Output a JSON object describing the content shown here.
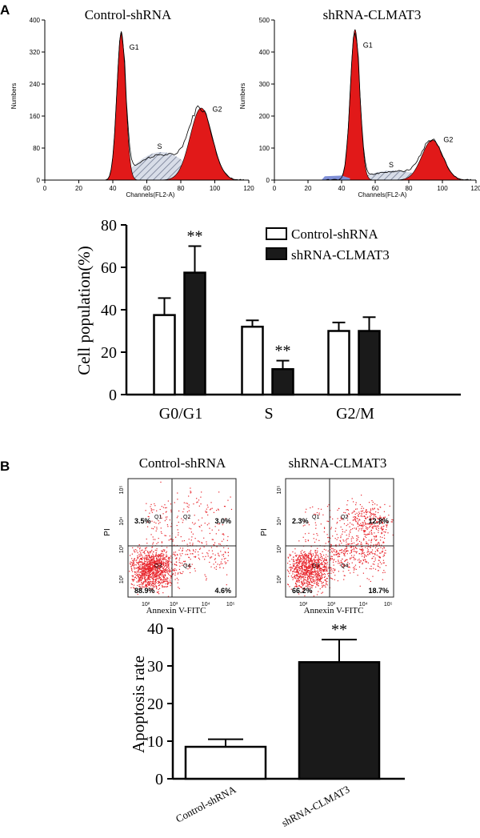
{
  "panels": {
    "a": "A",
    "b": "B"
  },
  "chart_data": [
    {
      "type": "histogram",
      "panel": "A",
      "title": "Control-shRNA",
      "xlabel": "Channels(FL2-A)",
      "ylabel": "Numbers",
      "xlim": [
        0,
        120
      ],
      "ylim": [
        0,
        400
      ],
      "xticks": [
        "0",
        "20",
        "40",
        "60",
        "80",
        "100",
        "120"
      ],
      "yticks": [
        "0",
        "80",
        "160",
        "240",
        "320",
        "400"
      ],
      "peaks": [
        {
          "label": "G1",
          "center": 45,
          "height": 370
        },
        {
          "label": "S",
          "center": 68,
          "height": 70
        },
        {
          "label": "G2",
          "center": 92,
          "height": 180
        }
      ]
    },
    {
      "type": "histogram",
      "panel": "A",
      "title": "shRNA-CLMAT3",
      "xlabel": "Channels(FL2-A)",
      "ylabel": "Numbers",
      "xlim": [
        0,
        120
      ],
      "ylim": [
        0,
        500
      ],
      "xticks": [
        "0",
        "20",
        "40",
        "60",
        "80",
        "100",
        "120"
      ],
      "yticks": [
        "0",
        "100",
        "200",
        "300",
        "400",
        "500"
      ],
      "peaks": [
        {
          "label": "G1",
          "center": 48,
          "height": 470
        },
        {
          "label": "S",
          "center": 70,
          "height": 30
        },
        {
          "label": "G2",
          "center": 94,
          "height": 125
        }
      ]
    },
    {
      "type": "bar",
      "panel": "A",
      "ylabel": "Cell population(%)",
      "ylim": [
        0,
        80
      ],
      "yticks": [
        "0",
        "20",
        "40",
        "60",
        "80"
      ],
      "categories": [
        "G0/G1",
        "S",
        "G2/M"
      ],
      "legend": [
        "Control-shRNA",
        "shRNA-CLMAT3"
      ],
      "series": [
        {
          "name": "Control-shRNA",
          "values": [
            37.5,
            32.0,
            30.0
          ],
          "errors": [
            8.0,
            3.0,
            4.0
          ]
        },
        {
          "name": "shRNA-CLMAT3",
          "values": [
            57.5,
            12.0,
            30.0
          ],
          "errors": [
            12.5,
            4.0,
            6.5
          ]
        }
      ],
      "significance": [
        "**",
        "**",
        ""
      ]
    },
    {
      "type": "scatter",
      "panel": "B",
      "title": "Control-shRNA",
      "xlabel": "Annexin V-FITC",
      "ylabel": "PI",
      "quadrants": {
        "q1": "Q1",
        "q2": "Q2",
        "q3": "Q3",
        "q4": "Q4"
      },
      "percents": {
        "q1": "3.5%",
        "q2": "3.0%",
        "q3": "88.9%",
        "q4": "4.6%"
      },
      "xticks": [
        "10²",
        "10³",
        "10⁴",
        "10⁵"
      ],
      "yticks": [
        "10²",
        "10³",
        "10⁴",
        "10⁵"
      ]
    },
    {
      "type": "scatter",
      "panel": "B",
      "title": "shRNA-CLMAT3",
      "xlabel": "Annexin V-FITC",
      "ylabel": "PI",
      "quadrants": {
        "q1": "Q1",
        "q2": "Q2",
        "q3": "Q3",
        "q4": "Q4"
      },
      "percents": {
        "q1": "2.3%",
        "q2": "12.8%",
        "q3": "66.2%",
        "q4": "18.7%"
      },
      "xticks": [
        "10²",
        "10³",
        "10⁴",
        "10⁵"
      ],
      "yticks": [
        "10²",
        "10³",
        "10⁴",
        "10⁵"
      ]
    },
    {
      "type": "bar",
      "panel": "B",
      "ylabel": "Apoptosis rate",
      "ylim": [
        0,
        40
      ],
      "yticks": [
        "0",
        "10",
        "20",
        "30",
        "40"
      ],
      "categories": [
        "Control-shRNA",
        "shRNA-CLMAT3"
      ],
      "values": [
        8.5,
        31.0
      ],
      "errors": [
        2.0,
        6.0
      ],
      "significance": [
        "",
        "**"
      ]
    }
  ]
}
